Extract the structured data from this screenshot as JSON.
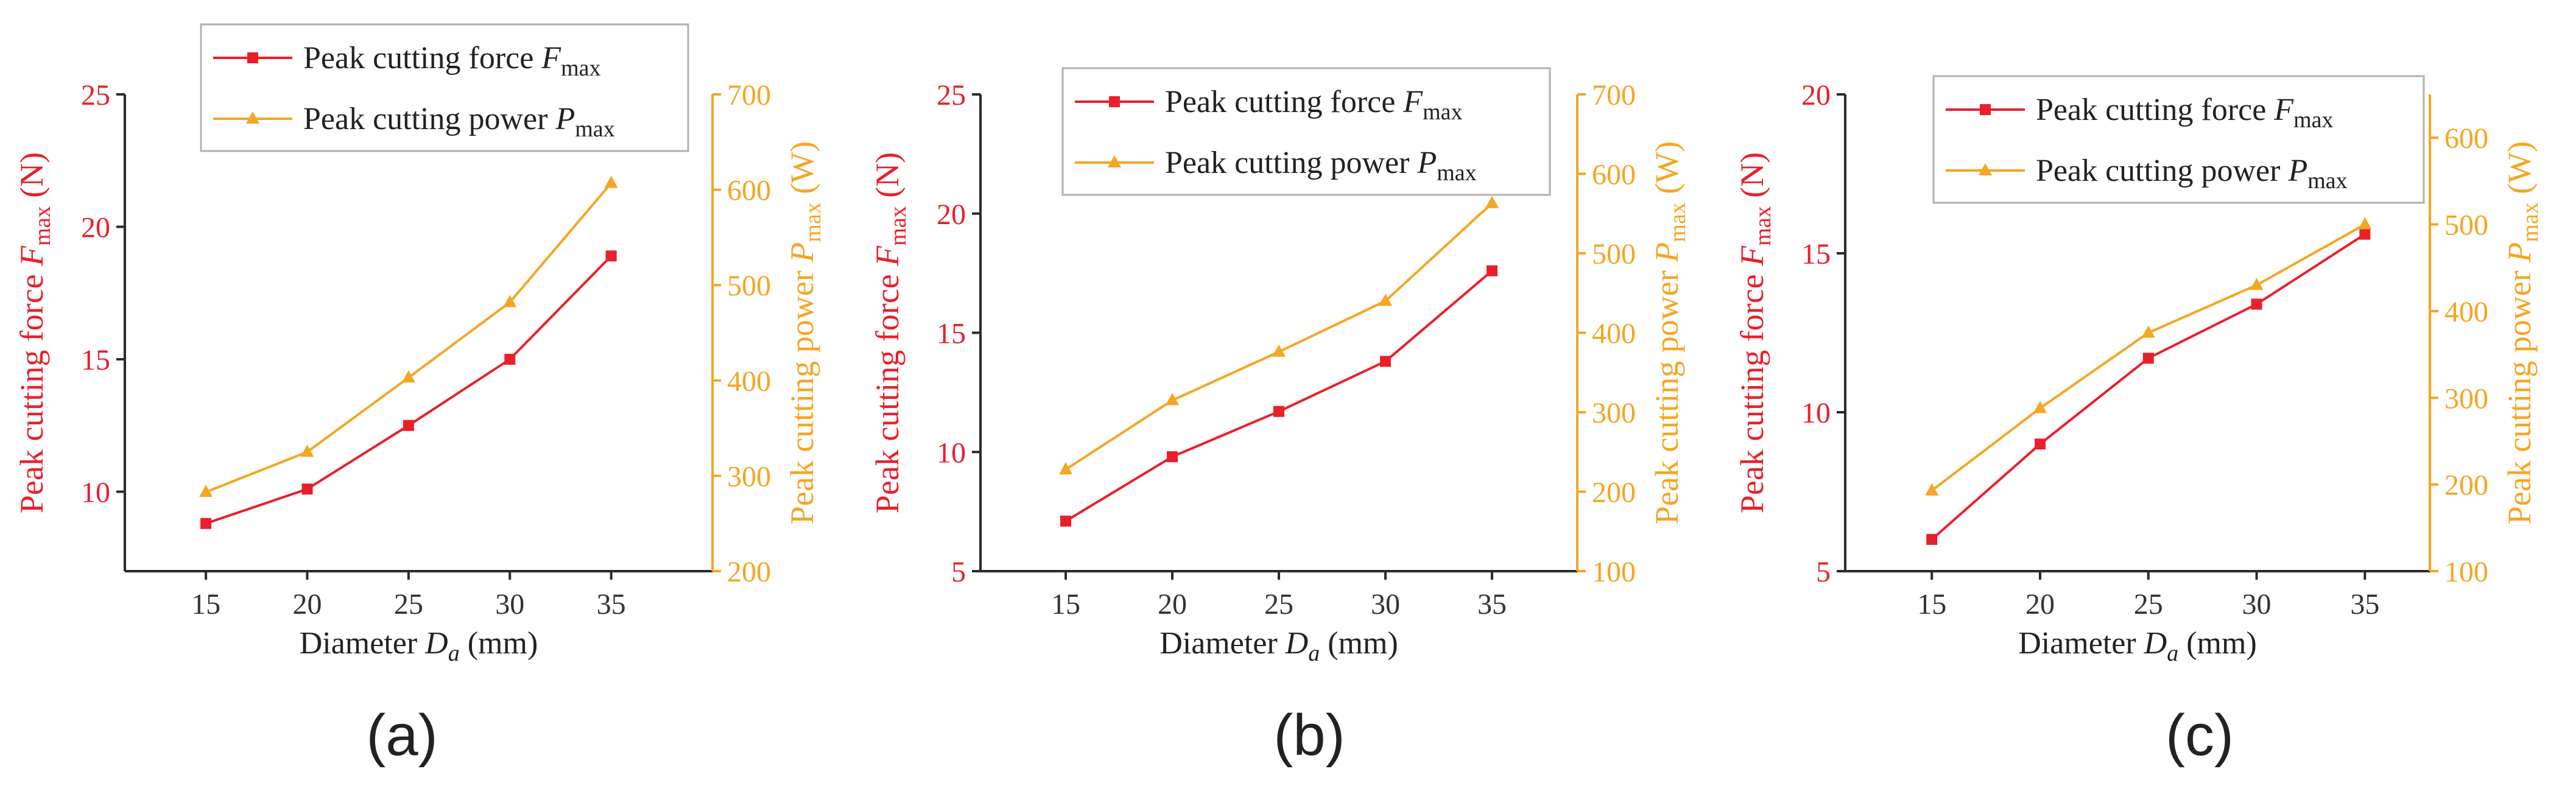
{
  "colors": {
    "force": "#e8202a",
    "power": "#f5a623",
    "axis": "#2a2a2a"
  },
  "chart_data": [
    {
      "type": "line",
      "panel_label": "(a)",
      "xlabel_main": "Diameter ",
      "xlabel_sym": "D",
      "xlabel_sub": "a",
      "xlabel_unit": " (mm)",
      "x": [
        15,
        20,
        25,
        30,
        35
      ],
      "xlim": [
        11,
        40
      ],
      "x_ticks": [
        15,
        20,
        25,
        30,
        35
      ],
      "ylabel_left": {
        "main": "Peak cutting force ",
        "sym": "F",
        "sub": "max",
        "unit": " (N)"
      },
      "ylabel_right": {
        "main": "Peak cutting power ",
        "sym": "P",
        "sub": "max",
        "unit": " (W)"
      },
      "ylim_left": [
        7,
        25
      ],
      "yticks_left": [
        10,
        15,
        20,
        25
      ],
      "ylim_right": [
        200,
        700
      ],
      "yticks_right": [
        200,
        300,
        400,
        500,
        600,
        700
      ],
      "legend": [
        {
          "main": "Peak cutting force ",
          "sym": "F",
          "sub": "max"
        },
        {
          "main": "Peak cutting power ",
          "sym": "P",
          "sub": "max"
        }
      ],
      "series": [
        {
          "name": "Peak cutting force Fmax",
          "axis": "left",
          "marker": "square",
          "values": [
            8.8,
            10.1,
            12.5,
            15.0,
            18.9
          ]
        },
        {
          "name": "Peak cutting power Pmax",
          "axis": "right",
          "marker": "triangle",
          "values": [
            283,
            325,
            403,
            482,
            607
          ]
        }
      ]
    },
    {
      "type": "line",
      "panel_label": "(b)",
      "xlabel_main": "Diameter ",
      "xlabel_sym": "D",
      "xlabel_sub": "a",
      "xlabel_unit": " (mm)",
      "x": [
        15,
        20,
        25,
        30,
        35
      ],
      "xlim": [
        11,
        39
      ],
      "x_ticks": [
        15,
        20,
        25,
        30,
        35
      ],
      "ylabel_left": {
        "main": "Peak cutting force ",
        "sym": "F",
        "sub": "max",
        "unit": " (N)"
      },
      "ylabel_right": {
        "main": "Peak cutting power ",
        "sym": "P",
        "sub": "max",
        "unit": " (W)"
      },
      "ylim_left": [
        5,
        25
      ],
      "yticks_left": [
        5,
        10,
        15,
        20,
        25
      ],
      "ylim_right": [
        100,
        700
      ],
      "yticks_right": [
        100,
        200,
        300,
        400,
        500,
        600,
        700
      ],
      "legend": [
        {
          "main": "Peak cutting force ",
          "sym": "F",
          "sub": "max"
        },
        {
          "main": "Peak cutting power ",
          "sym": "P",
          "sub": "max"
        }
      ],
      "series": [
        {
          "name": "Peak cutting force Fmax",
          "axis": "left",
          "marker": "square",
          "values": [
            7.1,
            9.8,
            11.7,
            13.8,
            17.6
          ]
        },
        {
          "name": "Peak cutting power Pmax",
          "axis": "right",
          "marker": "triangle",
          "values": [
            228,
            315,
            376,
            440,
            563
          ]
        }
      ]
    },
    {
      "type": "line",
      "panel_label": "(c)",
      "xlabel_main": "Diameter ",
      "xlabel_sym": "D",
      "xlabel_sub": "a",
      "xlabel_unit": " (mm)",
      "x": [
        15,
        20,
        25,
        30,
        35
      ],
      "xlim": [
        11,
        38
      ],
      "x_ticks": [
        15,
        20,
        25,
        30,
        35
      ],
      "ylabel_left": {
        "main": "Peak cutting force ",
        "sym": "F",
        "sub": "max",
        "unit": " (N)"
      },
      "ylabel_right": {
        "main": "Peak cutting power ",
        "sym": "P",
        "sub": "max",
        "unit": " (W)"
      },
      "ylim_left": [
        5,
        20
      ],
      "yticks_left": [
        5,
        10,
        15,
        20
      ],
      "ylim_right": [
        100,
        650
      ],
      "yticks_right": [
        100,
        200,
        300,
        400,
        500,
        600
      ],
      "legend": [
        {
          "main": "Peak cutting force ",
          "sym": "F",
          "sub": "max"
        },
        {
          "main": "Peak cutting power ",
          "sym": "P",
          "sub": "max"
        }
      ],
      "series": [
        {
          "name": "Peak cutting force Fmax",
          "axis": "left",
          "marker": "square",
          "values": [
            6.0,
            9.0,
            11.7,
            13.4,
            15.6
          ]
        },
        {
          "name": "Peak cutting power Pmax",
          "axis": "right",
          "marker": "triangle",
          "values": [
            193,
            288,
            375,
            430,
            500
          ]
        }
      ]
    }
  ]
}
